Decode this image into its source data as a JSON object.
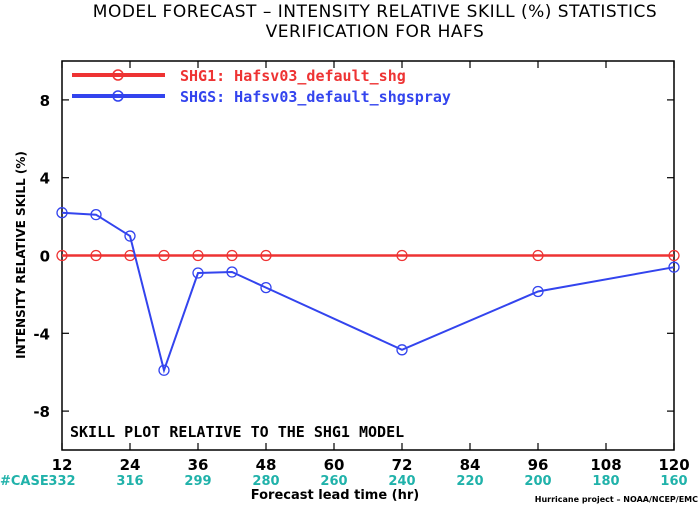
{
  "title_line1": "MODEL FORECAST – INTENSITY RELATIVE SKILL (%) STATISTICS",
  "title_line2": "VERIFICATION FOR HAFS",
  "note": "SKILL PLOT RELATIVE TO THE SHG1 MODEL",
  "case_label": "#CASE",
  "credit": "Hurricane project – NOAA/NCEP/EMC",
  "colors": {
    "case_counts": "#20b2aa",
    "grid": "#000000"
  },
  "chart_data": {
    "type": "line",
    "title": "MODEL FORECAST – INTENSITY RELATIVE SKILL (%) STATISTICS",
    "subtitle": "VERIFICATION FOR HAFS",
    "xlabel": "Forecast lead time (hr)",
    "ylabel": "INTENSITY RELATIVE SKILL (%)",
    "xlim": [
      12,
      120
    ],
    "ylim": [
      -10,
      10
    ],
    "x_ticks": [
      12,
      24,
      36,
      48,
      60,
      72,
      84,
      96,
      108,
      120
    ],
    "y_ticks": [
      -8,
      -4,
      0,
      4,
      8
    ],
    "case_counts": [
      332,
      316,
      299,
      280,
      260,
      240,
      220,
      200,
      180,
      160
    ],
    "legend_position": "top-left",
    "grid": false,
    "series": [
      {
        "name": "SHG1: Hafsv03_default_shg",
        "color": "#ee3333",
        "x": [
          12,
          18,
          24,
          30,
          36,
          42,
          48,
          72,
          96,
          120
        ],
        "y": [
          0,
          0,
          0,
          0,
          0,
          0,
          0,
          0,
          0,
          0
        ]
      },
      {
        "name": "SHGS: Hafsv03_default_shgspray",
        "color": "#3344ee",
        "x": [
          12,
          18,
          24,
          30,
          36,
          42,
          48,
          72,
          96,
          120
        ],
        "y": [
          2.2,
          2.1,
          1.0,
          -5.9,
          -0.9,
          -0.85,
          -1.65,
          -4.85,
          -1.85,
          -0.6
        ]
      }
    ]
  }
}
